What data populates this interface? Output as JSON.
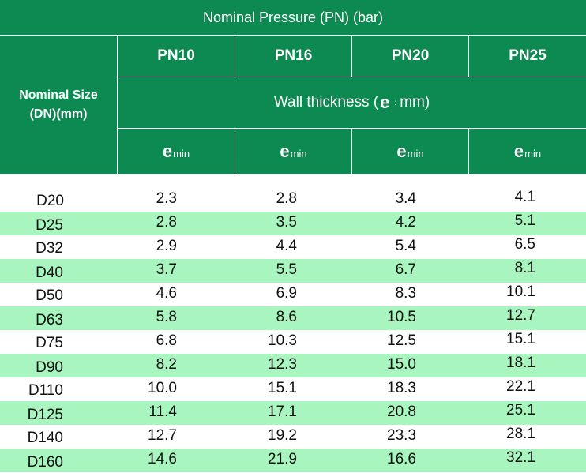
{
  "header": {
    "title": "Nominal Pressure (PN) (bar)",
    "size_label_line1": "Nominal Size",
    "size_label_line2": "(DN)(mm)",
    "pressure_classes": [
      "PN10",
      "PN16",
      "PN20",
      "PN25"
    ],
    "wall_thickness_pre": "Wall thickness (",
    "wall_thickness_e": "e",
    "wall_thickness_sep": ":",
    "wall_thickness_post": "mm)",
    "emin_e": "e",
    "emin_sub": "min"
  },
  "colors": {
    "header_green": "#0d8a52",
    "row_alt_green": "#a9f5c0"
  },
  "rows": [
    {
      "size": "D20",
      "values": [
        "2.3",
        "2.8",
        "3.4",
        "4.1"
      ]
    },
    {
      "size": "D25",
      "values": [
        "2.8",
        "3.5",
        "4.2",
        "5.1"
      ]
    },
    {
      "size": "D32",
      "values": [
        "2.9",
        "4.4",
        "5.4",
        "6.5"
      ]
    },
    {
      "size": "D40",
      "values": [
        "3.7",
        "5.5",
        "6.7",
        "8.1"
      ]
    },
    {
      "size": "D50",
      "values": [
        "4.6",
        "6.9",
        "8.3",
        "10.1"
      ]
    },
    {
      "size": "D63",
      "values": [
        "5.8",
        "8.6",
        "10.5",
        "12.7"
      ]
    },
    {
      "size": "D75",
      "values": [
        "6.8",
        "10.3",
        "12.5",
        "15.1"
      ]
    },
    {
      "size": "D90",
      "values": [
        "8.2",
        "12.3",
        "15.0",
        "18.1"
      ]
    },
    {
      "size": "D110",
      "values": [
        "10.0",
        "15.1",
        "18.3",
        "22.1"
      ]
    },
    {
      "size": "D125",
      "values": [
        "11.4",
        "17.1",
        "20.8",
        "25.1"
      ]
    },
    {
      "size": "D140",
      "values": [
        "12.7",
        "19.2",
        "23.3",
        "28.1"
      ]
    },
    {
      "size": "D160",
      "values": [
        "14.6",
        "21.9",
        "16.6",
        "32.1"
      ]
    }
  ]
}
